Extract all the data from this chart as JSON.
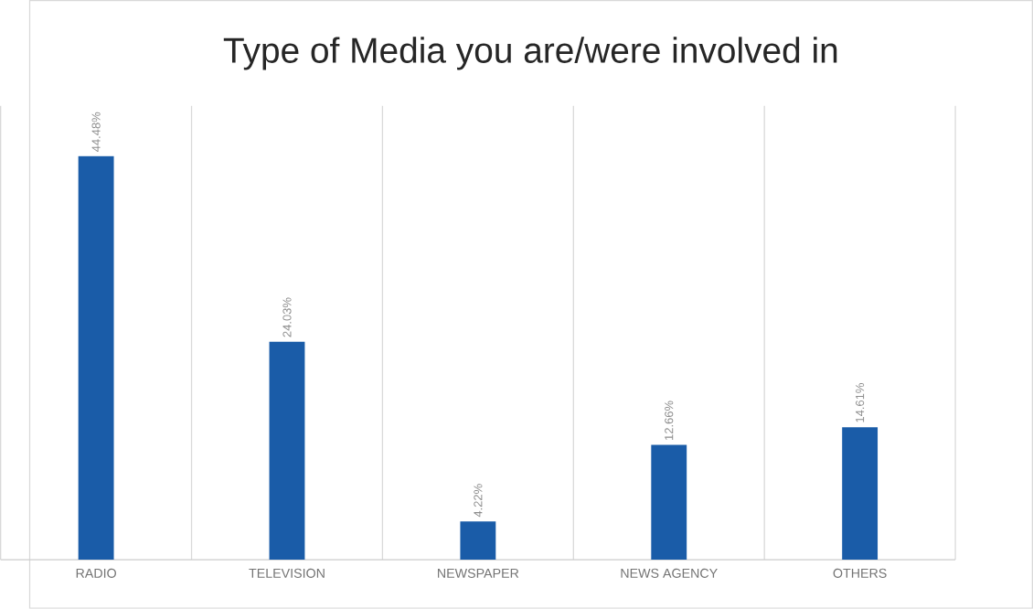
{
  "chart_data": {
    "type": "bar",
    "title": "Type of Media you are/were involved in",
    "categories": [
      "RADIO",
      "TELEVISION",
      "NEWSPAPER",
      "NEWS AGENCY",
      "OTHERS"
    ],
    "values": [
      44.48,
      24.03,
      4.22,
      12.66,
      14.61
    ],
    "value_labels": [
      "44.48%",
      "24.03%",
      "4.22%",
      "12.66%",
      "14.61%"
    ],
    "color": "#1a5ca8",
    "grid": "x"
  }
}
